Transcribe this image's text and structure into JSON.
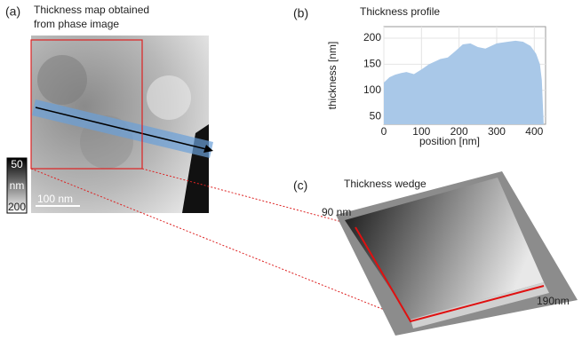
{
  "panel_a": {
    "label": "(a)",
    "title_lines": [
      "Thickness map obtained",
      "from phase image"
    ],
    "colorbar": {
      "top": 50,
      "unit": "nm",
      "bottom": 200
    },
    "scalebar": "100 nm"
  },
  "panel_c": {
    "label": "(c)",
    "title": "Thickness wedge",
    "top_label": "90 nm",
    "side_label": "190nm"
  },
  "chart_data": {
    "type": "area",
    "label": "(b)",
    "title": "Thickness profile",
    "x_label": "position [nm]",
    "y_label": "thickness [nm]",
    "x": [
      0,
      15,
      30,
      45,
      60,
      80,
      100,
      120,
      150,
      170,
      190,
      210,
      230,
      250,
      270,
      300,
      330,
      350,
      370,
      390,
      405,
      415,
      420,
      425
    ],
    "values": [
      115,
      125,
      130,
      133,
      135,
      131,
      140,
      150,
      160,
      163,
      175,
      188,
      190,
      183,
      180,
      190,
      193,
      195,
      193,
      185,
      170,
      150,
      120,
      35
    ],
    "color": "#a9c8e8",
    "xlim": [
      0,
      430
    ],
    "ylim": [
      35,
      222
    ],
    "xticks": [
      0,
      100,
      200,
      300,
      400
    ],
    "yticks": [
      50,
      100,
      150,
      200
    ],
    "grid": true
  }
}
